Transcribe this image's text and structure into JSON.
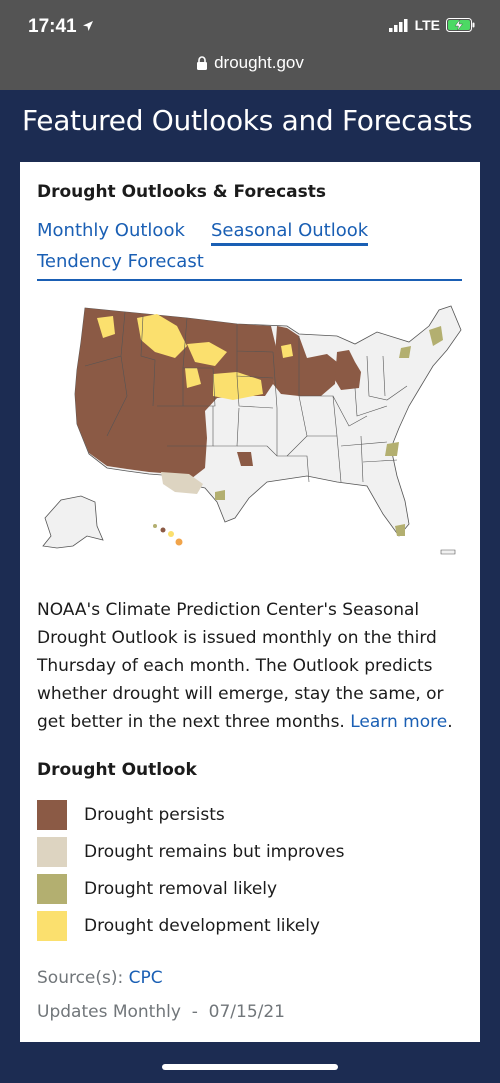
{
  "status_bar": {
    "time": "17:41",
    "network": "LTE"
  },
  "browser": {
    "url": "drought.gov"
  },
  "page": {
    "title": "Featured Outlooks and Forecasts"
  },
  "card": {
    "title": "Drought Outlooks & Forecasts",
    "tabs": [
      {
        "label": "Monthly Outlook",
        "active": false
      },
      {
        "label": "Seasonal Outlook",
        "active": true
      },
      {
        "label": "Tendency Forecast",
        "active": false
      }
    ],
    "description": "NOAA's Climate Prediction Center's Seasonal Drought Outlook is issued monthly on the third Thursday of each month. The Outlook predicts whether drought will emerge, stay the same, or get better in the next three months.",
    "learn_more": "Learn more",
    "period": ".",
    "legend_title": "Drought Outlook",
    "legend": [
      {
        "label": "Drought persists",
        "color": "#8b5a45"
      },
      {
        "label": "Drought remains but improves",
        "color": "#ddd4c1"
      },
      {
        "label": "Drought removal likely",
        "color": "#b3af70"
      },
      {
        "label": "Drought development likely",
        "color": "#fbe06e"
      }
    ],
    "source_label": "Source(s):",
    "source_link": "CPC",
    "updates": "Updates Monthly  -  07/15/21"
  },
  "colors": {
    "navy": "#1c2c52",
    "link": "#1a5fb4",
    "status_gray": "#545454"
  }
}
